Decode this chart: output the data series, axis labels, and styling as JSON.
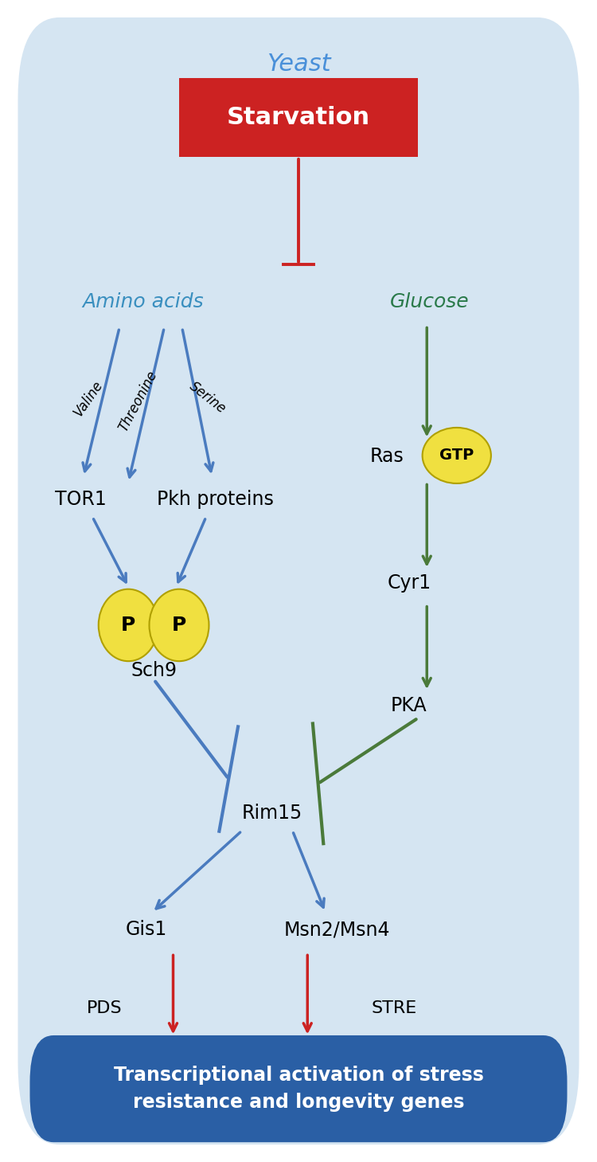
{
  "bg_color": "#d5e5f2",
  "title": "Yeast",
  "title_color": "#4a90d9",
  "starvation_box_color": "#cc2222",
  "starvation_text": "Starvation",
  "amino_acids_color": "#3a8fbf",
  "glucose_color": "#2a7a4a",
  "blue_arrow": "#4a7bbf",
  "green_arrow": "#4a7a3a",
  "red_arrow": "#cc2222",
  "yellow_fill": "#f0e040",
  "yellow_edge": "#b0a000",
  "blue_box_color": "#2a5fa5",
  "blue_box_text": "Transcriptional activation of stress\nresistance and longevity genes"
}
